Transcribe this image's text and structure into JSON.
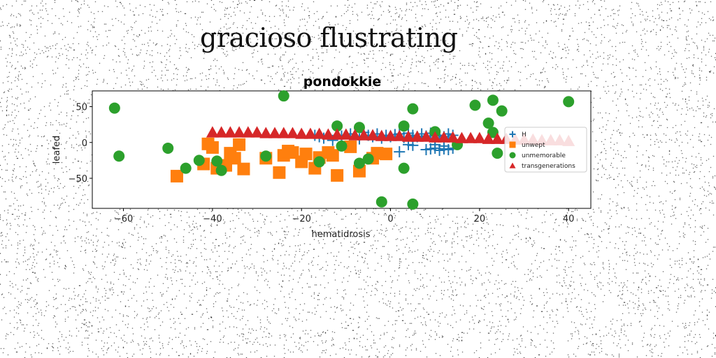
{
  "page": {
    "title": "gracioso flustrating"
  },
  "chart_data": {
    "type": "scatter",
    "title": "pondokkie",
    "xlabel": "hematidrosis",
    "ylabel": "leafed",
    "xlim": [
      -67,
      45
    ],
    "ylim": [
      -92,
      72
    ],
    "xticks": [
      -60,
      -40,
      -20,
      0,
      20,
      40
    ],
    "yticks": [
      50,
      0,
      -50
    ],
    "grid": false,
    "legend_position": "center-right",
    "series": [
      {
        "name": "H",
        "marker": "plus",
        "color": "#1f77b4",
        "points": [
          [
            -17,
            10
          ],
          [
            -16,
            8
          ],
          [
            -15,
            6
          ],
          [
            -13,
            3
          ],
          [
            -11,
            9
          ],
          [
            -9,
            12
          ],
          [
            -7,
            5
          ],
          [
            -6,
            14
          ],
          [
            -5,
            10
          ],
          [
            -4,
            8
          ],
          [
            -3,
            12
          ],
          [
            -2,
            6
          ],
          [
            -1,
            10
          ],
          [
            0,
            8
          ],
          [
            1,
            11
          ],
          [
            2,
            12
          ],
          [
            3,
            7
          ],
          [
            4,
            13
          ],
          [
            5,
            10
          ],
          [
            6,
            8
          ],
          [
            7,
            12
          ],
          [
            8,
            9
          ],
          [
            9,
            13
          ],
          [
            10,
            11
          ],
          [
            11,
            10
          ],
          [
            12,
            8
          ],
          [
            13,
            12
          ],
          [
            14,
            10
          ],
          [
            2,
            -13
          ],
          [
            4,
            -3
          ],
          [
            5,
            -4
          ],
          [
            8,
            -10
          ],
          [
            9,
            -9
          ],
          [
            10,
            -8
          ],
          [
            11,
            -11
          ],
          [
            12,
            -9
          ],
          [
            13,
            -10
          ],
          [
            14,
            -8
          ],
          [
            10,
            -3
          ],
          [
            12,
            -5
          ]
        ]
      },
      {
        "name": "unwept",
        "marker": "square",
        "color": "#ff7f0e",
        "points": [
          [
            -48,
            -47
          ],
          [
            -42,
            -30
          ],
          [
            -41,
            -2
          ],
          [
            -40,
            -7
          ],
          [
            -39,
            -36
          ],
          [
            -37,
            -32
          ],
          [
            -36,
            -15
          ],
          [
            -35,
            -22
          ],
          [
            -34,
            -3
          ],
          [
            -33,
            -37
          ],
          [
            -28,
            -22
          ],
          [
            -25,
            -42
          ],
          [
            -24,
            -18
          ],
          [
            -23,
            -12
          ],
          [
            -22,
            -14
          ],
          [
            -20,
            -27
          ],
          [
            -19,
            -16
          ],
          [
            -17,
            -36
          ],
          [
            -16,
            -21
          ],
          [
            -14,
            -14
          ],
          [
            -13,
            -18
          ],
          [
            -12,
            -46
          ],
          [
            -9,
            -6
          ],
          [
            -7,
            -40
          ],
          [
            -4,
            -22
          ],
          [
            -3,
            -15
          ],
          [
            -1,
            -16
          ]
        ]
      },
      {
        "name": "unmemorable",
        "marker": "circle",
        "color": "#2ca02c",
        "points": [
          [
            -62,
            48
          ],
          [
            -61,
            -19
          ],
          [
            -50,
            -8
          ],
          [
            -46,
            -36
          ],
          [
            -43,
            -25
          ],
          [
            -39,
            -26
          ],
          [
            -38,
            -39
          ],
          [
            -28,
            -19
          ],
          [
            -24,
            65
          ],
          [
            -16,
            -27
          ],
          [
            -12,
            23
          ],
          [
            -11,
            -5
          ],
          [
            -7,
            21
          ],
          [
            -7,
            -29
          ],
          [
            -5,
            -23
          ],
          [
            -2,
            -83
          ],
          [
            3,
            23
          ],
          [
            3,
            -36
          ],
          [
            5,
            47
          ],
          [
            5,
            -86
          ],
          [
            10,
            15
          ],
          [
            15,
            -3
          ],
          [
            19,
            52
          ],
          [
            22,
            27
          ],
          [
            23,
            59
          ],
          [
            23,
            14
          ],
          [
            24,
            -15
          ],
          [
            25,
            44
          ],
          [
            40,
            57
          ]
        ]
      },
      {
        "name": "transgenerations",
        "marker": "triangle",
        "color": "#d62728",
        "points": [
          [
            -40,
            14
          ],
          [
            -38,
            14
          ],
          [
            -36,
            14
          ],
          [
            -34,
            14
          ],
          [
            -32,
            14
          ],
          [
            -30,
            14
          ],
          [
            -28,
            13
          ],
          [
            -26,
            13
          ],
          [
            -24,
            13
          ],
          [
            -22,
            13
          ],
          [
            -20,
            12
          ],
          [
            -18,
            12
          ],
          [
            -16,
            12
          ],
          [
            -14,
            11
          ],
          [
            -12,
            11
          ],
          [
            -10,
            11
          ],
          [
            -8,
            10
          ],
          [
            -6,
            10
          ],
          [
            -4,
            10
          ],
          [
            -2,
            9
          ],
          [
            0,
            9
          ],
          [
            2,
            9
          ],
          [
            4,
            8
          ],
          [
            6,
            8
          ],
          [
            8,
            8
          ],
          [
            10,
            7
          ],
          [
            12,
            7
          ],
          [
            14,
            7
          ],
          [
            16,
            6
          ],
          [
            18,
            6
          ],
          [
            20,
            6
          ],
          [
            22,
            5
          ],
          [
            24,
            5
          ],
          [
            26,
            5
          ],
          [
            28,
            4
          ],
          [
            30,
            4
          ],
          [
            32,
            4
          ],
          [
            34,
            3
          ],
          [
            36,
            3
          ],
          [
            38,
            3
          ],
          [
            40,
            2
          ]
        ]
      }
    ]
  }
}
